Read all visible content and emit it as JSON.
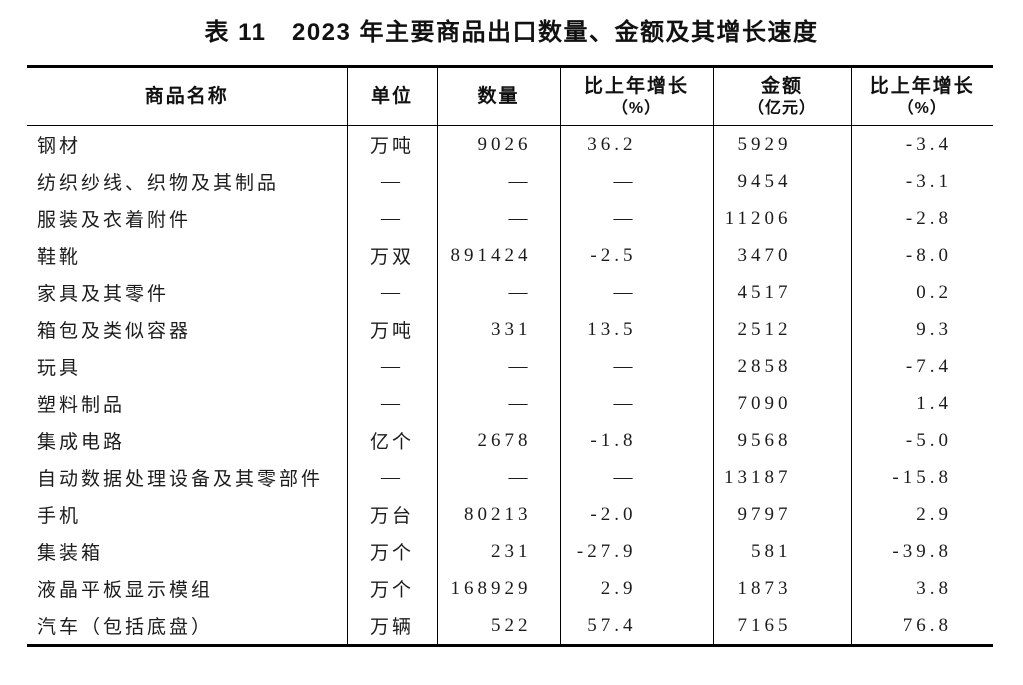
{
  "page": {
    "background_color": "#ffffff",
    "text_color": "#1c1c1c",
    "border_color": "#000000"
  },
  "table": {
    "title": "表 11　2023 年主要商品出口数量、金额及其增长速度",
    "columns": [
      {
        "label": "商品名称",
        "sub": ""
      },
      {
        "label": "单位",
        "sub": ""
      },
      {
        "label": "数量",
        "sub": ""
      },
      {
        "label": "比上年增长",
        "sub": "（%）"
      },
      {
        "label": "金额",
        "sub": "（亿元）"
      },
      {
        "label": "比上年增长",
        "sub": "（%）"
      }
    ],
    "empty_cell_mark": "—",
    "rows": [
      {
        "name": "钢材",
        "unit": "万吨",
        "quantity": "9026",
        "quantity_growth": "36.2",
        "amount": "5929",
        "amount_growth": "-3.4"
      },
      {
        "name": "纺织纱线、织物及其制品",
        "unit": "—",
        "quantity": "—",
        "quantity_growth": "—",
        "amount": "9454",
        "amount_growth": "-3.1"
      },
      {
        "name": "服装及衣着附件",
        "unit": "—",
        "quantity": "—",
        "quantity_growth": "—",
        "amount": "11206",
        "amount_growth": "-2.8"
      },
      {
        "name": "鞋靴",
        "unit": "万双",
        "quantity": "891424",
        "quantity_growth": "-2.5",
        "amount": "3470",
        "amount_growth": "-8.0"
      },
      {
        "name": "家具及其零件",
        "unit": "—",
        "quantity": "—",
        "quantity_growth": "—",
        "amount": "4517",
        "amount_growth": "0.2"
      },
      {
        "name": "箱包及类似容器",
        "unit": "万吨",
        "quantity": "331",
        "quantity_growth": "13.5",
        "amount": "2512",
        "amount_growth": "9.3"
      },
      {
        "name": "玩具",
        "unit": "—",
        "quantity": "—",
        "quantity_growth": "—",
        "amount": "2858",
        "amount_growth": "-7.4"
      },
      {
        "name": "塑料制品",
        "unit": "—",
        "quantity": "—",
        "quantity_growth": "—",
        "amount": "7090",
        "amount_growth": "1.4"
      },
      {
        "name": "集成电路",
        "unit": "亿个",
        "quantity": "2678",
        "quantity_growth": "-1.8",
        "amount": "9568",
        "amount_growth": "-5.0"
      },
      {
        "name": "自动数据处理设备及其零部件",
        "unit": "—",
        "quantity": "—",
        "quantity_growth": "—",
        "amount": "13187",
        "amount_growth": "-15.8"
      },
      {
        "name": "手机",
        "unit": "万台",
        "quantity": "80213",
        "quantity_growth": "-2.0",
        "amount": "9797",
        "amount_growth": "2.9"
      },
      {
        "name": "集装箱",
        "unit": "万个",
        "quantity": "231",
        "quantity_growth": "-27.9",
        "amount": "581",
        "amount_growth": "-39.8"
      },
      {
        "name": "液晶平板显示模组",
        "unit": "万个",
        "quantity": "168929",
        "quantity_growth": "2.9",
        "amount": "1873",
        "amount_growth": "3.8"
      },
      {
        "name": "汽车（包括底盘）",
        "unit": "万辆",
        "quantity": "522",
        "quantity_growth": "57.4",
        "amount": "7165",
        "amount_growth": "76.8"
      }
    ]
  }
}
